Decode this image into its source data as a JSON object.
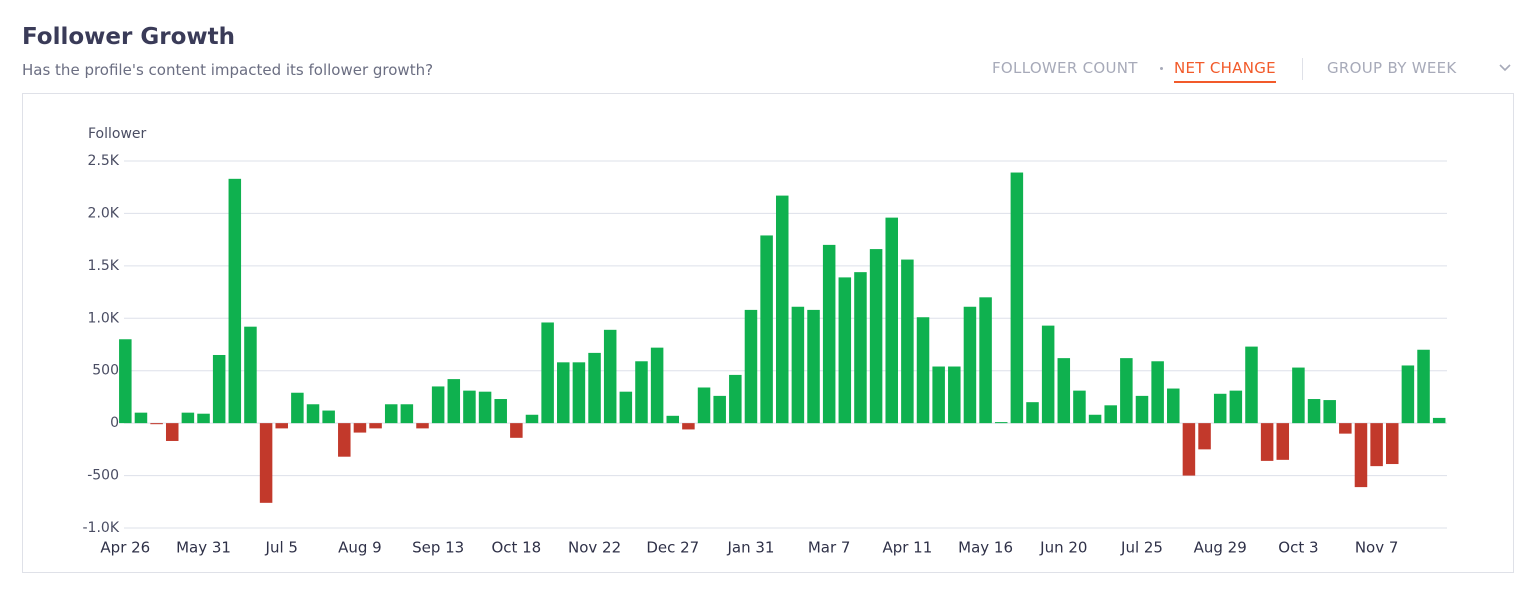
{
  "header": {
    "title": "Follower Growth",
    "subtitle": "Has the profile's content impacted its follower growth?",
    "controls": {
      "follower_count": "FOLLOWER COUNT",
      "net_change": "NET CHANGE",
      "group_by": "GROUP BY WEEK"
    }
  },
  "chart_data": {
    "type": "bar",
    "y_label": "Follower",
    "categories": [
      "Apr 26",
      null,
      null,
      null,
      null,
      "May 31",
      null,
      null,
      null,
      null,
      "Jul 5",
      null,
      null,
      null,
      null,
      "Aug 9",
      null,
      null,
      null,
      null,
      "Sep 13",
      null,
      null,
      null,
      null,
      "Oct 18",
      null,
      null,
      null,
      null,
      "Nov 22",
      null,
      null,
      null,
      null,
      "Dec 27",
      null,
      null,
      null,
      null,
      "Jan 31",
      null,
      null,
      null,
      null,
      "Mar 7",
      null,
      null,
      null,
      null,
      "Apr 11",
      null,
      null,
      null,
      null,
      "May 16",
      null,
      null,
      null,
      null,
      "Jun 20",
      null,
      null,
      null,
      null,
      "Jul 25",
      null,
      null,
      null,
      null,
      "Aug 29",
      null,
      null,
      null,
      null,
      "Oct 3",
      null,
      null,
      null,
      null,
      "Nov 7",
      null,
      null,
      null,
      null
    ],
    "values": [
      800,
      100,
      -10,
      -170,
      100,
      90,
      650,
      2330,
      920,
      -760,
      -50,
      290,
      180,
      120,
      -320,
      -90,
      -50,
      180,
      180,
      -50,
      350,
      420,
      310,
      300,
      230,
      -140,
      80,
      960,
      580,
      580,
      670,
      890,
      300,
      590,
      720,
      70,
      -60,
      340,
      260,
      460,
      1080,
      1790,
      2170,
      1110,
      1080,
      1700,
      1390,
      1440,
      1660,
      1960,
      1560,
      1010,
      540,
      540,
      1110,
      1200,
      10,
      2390,
      200,
      930,
      620,
      310,
      80,
      170,
      620,
      260,
      590,
      330,
      -500,
      -250,
      280,
      310,
      730,
      -360,
      -350,
      530,
      230,
      220,
      -100,
      -610,
      -410,
      -390,
      550,
      700,
      50
    ],
    "positive_color": "#0fb14f",
    "negative_color": "#c2392b",
    "ylim": [
      -1000,
      2500
    ],
    "yticks": [
      {
        "value": -1000,
        "label": "-1.0K"
      },
      -500,
      0,
      500,
      {
        "value": 1000,
        "label": "1.0K"
      },
      {
        "value": 1500,
        "label": "1.5K"
      },
      {
        "value": 2000,
        "label": "2.0K"
      },
      {
        "value": 2500,
        "label": "2.5K"
      }
    ],
    "grid": true
  }
}
